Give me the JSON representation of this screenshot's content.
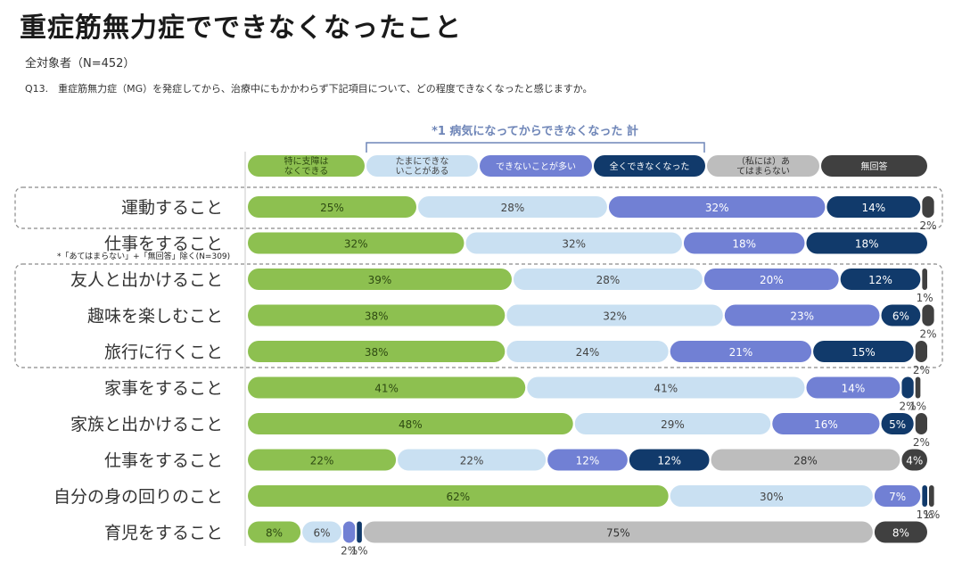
{
  "header": {
    "title": "重症筋無力症でできなくなったこと",
    "subtitle": "全対象者（N=452）",
    "question": "Q13.　重症筋無力症（MG）を発症してから、治療中にもかかわらず下記項目について、どの程度できなくなったと感じますか。"
  },
  "chart_data": {
    "type": "bar",
    "orientation": "horizontal",
    "stacked": true,
    "percent": true,
    "legend_position": "top",
    "bracket_label": "*1 病気になってからできなくなった 計",
    "note": "*「あてはまらない」+「無回答」除く(N=309)",
    "categories": [
      "運動すること",
      "仕事をすること",
      "友人と出かけること",
      "趣味を楽しむこと",
      "旅行に行くこと",
      "家事をすること",
      "家族と出かけること",
      "仕事をすること",
      "自分の身の回りのこと",
      "育児をすること"
    ],
    "series": [
      {
        "name": "特に支障はなくできる",
        "color": "#8dc050",
        "text_color": "#2e4a12",
        "values": [
          25,
          32,
          39,
          38,
          38,
          41,
          48,
          22,
          62,
          8
        ]
      },
      {
        "name": "たまにできないことがある",
        "color": "#c9e0f2",
        "text_color": "#444444",
        "values": [
          28,
          32,
          28,
          32,
          24,
          41,
          29,
          22,
          30,
          6
        ]
      },
      {
        "name": "できないことが多い",
        "color": "#7180d4",
        "text_color": "#ffffff",
        "values": [
          32,
          18,
          20,
          23,
          21,
          14,
          16,
          12,
          7,
          2
        ]
      },
      {
        "name": "全くできなくなった",
        "color": "#113a6b",
        "text_color": "#ffffff",
        "values": [
          14,
          18,
          12,
          6,
          15,
          2,
          5,
          12,
          1,
          1
        ]
      },
      {
        "name": "（私には）あてはまらない",
        "color": "#bdbdbd",
        "text_color": "#333333",
        "values": [
          0,
          0,
          0,
          0,
          0,
          0,
          0,
          28,
          0,
          75
        ]
      },
      {
        "name": "無回答",
        "color": "#404040",
        "text_color": "#ffffff",
        "values": [
          2,
          0,
          1,
          2,
          2,
          1,
          2,
          4,
          1,
          8
        ]
      }
    ]
  }
}
